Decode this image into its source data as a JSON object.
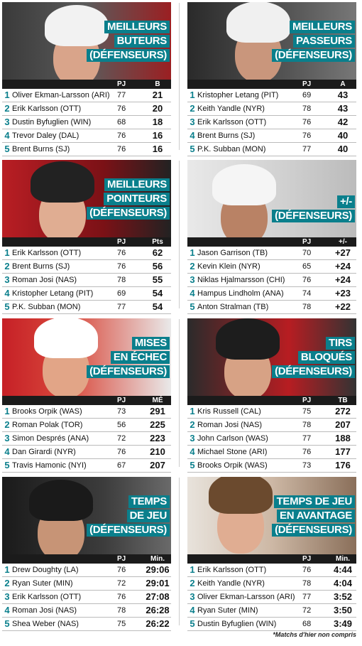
{
  "panels": [
    {
      "title_lines": [
        "Meilleurs",
        "buteurs",
        "(défenseurs)"
      ],
      "col_gp": "PJ",
      "col_stat": "B",
      "rows": [
        {
          "rank": "1",
          "name": "Oliver Ekman-Larsson (ARI)",
          "gp": "77",
          "stat": "21"
        },
        {
          "rank": "2",
          "name": "Erik Karlsson (OTT)",
          "gp": "76",
          "stat": "20"
        },
        {
          "rank": "3",
          "name": "Dustin Byfuglien (WIN)",
          "gp": "68",
          "stat": "18"
        },
        {
          "rank": "4",
          "name": "Trevor Daley (DAL)",
          "gp": "76",
          "stat": "16"
        },
        {
          "rank": "5",
          "name": "Brent Burns (SJ)",
          "gp": "76",
          "stat": "16"
        }
      ]
    },
    {
      "title_lines": [
        "Meilleurs",
        "passeurs",
        "(défenseurs)"
      ],
      "col_gp": "PJ",
      "col_stat": "A",
      "rows": [
        {
          "rank": "1",
          "name": "Kristopher Letang (PIT)",
          "gp": "69",
          "stat": "43"
        },
        {
          "rank": "2",
          "name": "Keith Yandle (NYR)",
          "gp": "78",
          "stat": "43"
        },
        {
          "rank": "3",
          "name": "Erik Karlsson (OTT)",
          "gp": "76",
          "stat": "42"
        },
        {
          "rank": "4",
          "name": "Brent Burns (SJ)",
          "gp": "76",
          "stat": "40"
        },
        {
          "rank": "5",
          "name": "P.K. Subban (MON)",
          "gp": "77",
          "stat": "40"
        }
      ]
    },
    {
      "title_lines": [
        "Meilleurs",
        "pointeurs",
        "(défenseurs)"
      ],
      "col_gp": "PJ",
      "col_stat": "Pts",
      "rows": [
        {
          "rank": "1",
          "name": "Erik Karlsson (OTT)",
          "gp": "76",
          "stat": "62"
        },
        {
          "rank": "2",
          "name": "Brent Burns (SJ)",
          "gp": "76",
          "stat": "56"
        },
        {
          "rank": "3",
          "name": "Roman Josi (NAS)",
          "gp": "78",
          "stat": "55"
        },
        {
          "rank": "4",
          "name": "Kristopher Letang (PIT)",
          "gp": "69",
          "stat": "54"
        },
        {
          "rank": "5",
          "name": "P.K. Subban (MON)",
          "gp": "77",
          "stat": "54"
        }
      ]
    },
    {
      "title_lines": [
        "+/-",
        "(défenseurs)"
      ],
      "col_gp": "PJ",
      "col_stat": "+/-",
      "rows": [
        {
          "rank": "1",
          "name": "Jason Garrison (TB)",
          "gp": "70",
          "stat": "+27"
        },
        {
          "rank": "2",
          "name": "Kevin Klein (NYR)",
          "gp": "65",
          "stat": "+24"
        },
        {
          "rank": "3",
          "name": "Niklas Hjalmarsson (CHI)",
          "gp": "76",
          "stat": "+24"
        },
        {
          "rank": "4",
          "name": "Hampus Lindholm (ANA)",
          "gp": "74",
          "stat": "+23"
        },
        {
          "rank": "5",
          "name": "Anton Stralman (TB)",
          "gp": "78",
          "stat": "+22"
        }
      ]
    },
    {
      "title_lines": [
        "Mises",
        "en échec",
        "(défenseurs)"
      ],
      "col_gp": "PJ",
      "col_stat": "MÉ",
      "rows": [
        {
          "rank": "1",
          "name": "Brooks Orpik (WAS)",
          "gp": "73",
          "stat": "291"
        },
        {
          "rank": "2",
          "name": "Roman Polak (TOR)",
          "gp": "56",
          "stat": "225"
        },
        {
          "rank": "3",
          "name": "Simon Després (ANA)",
          "gp": "72",
          "stat": "223"
        },
        {
          "rank": "4",
          "name": "Dan Girardi (NYR)",
          "gp": "76",
          "stat": "210"
        },
        {
          "rank": "5",
          "name": "Travis Hamonic (NYI)",
          "gp": "67",
          "stat": "207"
        }
      ]
    },
    {
      "title_lines": [
        "Tirs",
        "bloqués",
        "(défenseurs)"
      ],
      "col_gp": "PJ",
      "col_stat": "TB",
      "rows": [
        {
          "rank": "1",
          "name": "Kris Russell (CAL)",
          "gp": "75",
          "stat": "272"
        },
        {
          "rank": "2",
          "name": "Roman Josi (NAS)",
          "gp": "78",
          "stat": "207"
        },
        {
          "rank": "3",
          "name": "John Carlson (WAS)",
          "gp": "77",
          "stat": "188"
        },
        {
          "rank": "4",
          "name": "Michael Stone (ARI)",
          "gp": "76",
          "stat": "177"
        },
        {
          "rank": "5",
          "name": "Brooks Orpik (WAS)",
          "gp": "73",
          "stat": "176"
        }
      ]
    },
    {
      "title_lines": [
        "Temps",
        "de jeu",
        "(défenseurs)"
      ],
      "col_gp": "PJ",
      "col_stat": "Min.",
      "rows": [
        {
          "rank": "1",
          "name": "Drew Doughty (LA)",
          "gp": "76",
          "stat": "29:06"
        },
        {
          "rank": "2",
          "name": "Ryan Suter (MIN)",
          "gp": "72",
          "stat": "29:01"
        },
        {
          "rank": "3",
          "name": "Erik Karlsson (OTT)",
          "gp": "76",
          "stat": "27:08"
        },
        {
          "rank": "4",
          "name": "Roman Josi (NAS)",
          "gp": "78",
          "stat": "26:28"
        },
        {
          "rank": "5",
          "name": "Shea Weber (NAS)",
          "gp": "75",
          "stat": "26:22"
        }
      ]
    },
    {
      "title_lines": [
        "Temps de jeu",
        "en avantage",
        "(défenseurs)"
      ],
      "col_gp": "PJ",
      "col_stat": "Min.",
      "rows": [
        {
          "rank": "1",
          "name": "Erik Karlsson (OTT)",
          "gp": "76",
          "stat": "4:44"
        },
        {
          "rank": "2",
          "name": "Keith Yandle (NYR)",
          "gp": "78",
          "stat": "4:04"
        },
        {
          "rank": "3",
          "name": "Oliver Ekman-Larsson (ARI)",
          "gp": "77",
          "stat": "3:52"
        },
        {
          "rank": "4",
          "name": "Ryan Suter (MIN)",
          "gp": "72",
          "stat": "3:50"
        },
        {
          "rank": "5",
          "name": "Dustin Byfuglien (WIN)",
          "gp": "68",
          "stat": "3:49"
        }
      ]
    }
  ],
  "footnote": "*Matchs d'hier non compris",
  "colors": {
    "accent": "#0a7f8c",
    "header_bg": "#1b1b1b"
  }
}
